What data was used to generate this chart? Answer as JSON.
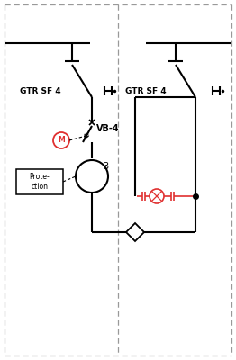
{
  "background": "#ffffff",
  "border_color": "#999999",
  "line_color": "#000000",
  "red_color": "#e03030",
  "label_left": "GTR SF 4",
  "label_right": "GTR SF 4",
  "label_vb": "VB-4",
  "label_3": "3"
}
